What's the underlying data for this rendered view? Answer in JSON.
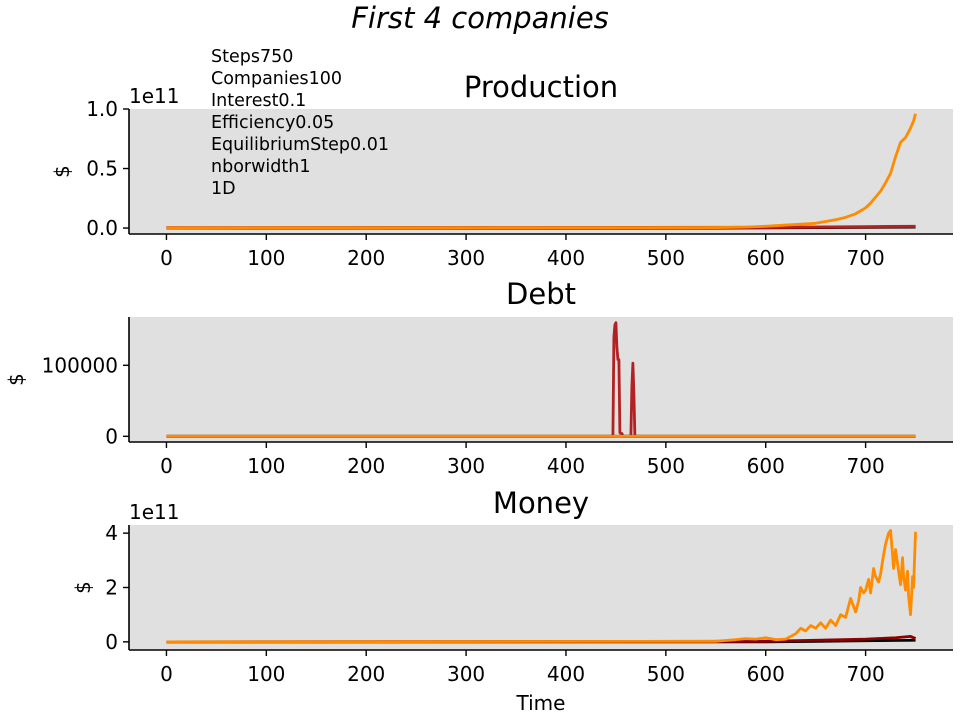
{
  "figure": {
    "suptitle": "First 4 companies",
    "params": [
      "Steps750",
      "Companies100",
      "Interest0.1",
      "Efficiency0.05",
      "EquilibriumStep0.01",
      "nborwidth1",
      "1D"
    ],
    "colors": {
      "plot_bg": "#e0e0e0",
      "series": [
        "#000000",
        "#8b0000",
        "#b22222",
        "#ff8c00"
      ]
    }
  },
  "chart_data": [
    {
      "type": "line",
      "title": "Production",
      "xlabel": "",
      "ylabel": "$",
      "y_offset_label": "1e11",
      "xlim": [
        -37.5,
        787.5
      ],
      "ylim": [
        -0.05,
        1.0
      ],
      "xticks": [
        0,
        100,
        200,
        300,
        400,
        500,
        600,
        700
      ],
      "xtick_labels": [
        "0",
        "100",
        "200",
        "300",
        "400",
        "500",
        "600",
        "700"
      ],
      "yticks": [
        0.0,
        0.5,
        1.0
      ],
      "ytick_labels": [
        "0.0",
        "0.5",
        "1.0"
      ],
      "grid": false,
      "series": [
        {
          "color": "#000000",
          "x": [
            0,
            550,
            600,
            650,
            700,
            750
          ],
          "y": [
            0,
            0,
            0.002,
            0.004,
            0.006,
            0.008
          ]
        },
        {
          "color": "#8b0000",
          "x": [
            0,
            600,
            650,
            700,
            750
          ],
          "y": [
            0.002,
            0.004,
            0.006,
            0.009,
            0.012
          ]
        },
        {
          "color": "#b22222",
          "x": [
            0,
            600,
            650,
            700,
            750
          ],
          "y": [
            0.003,
            0.006,
            0.009,
            0.012,
            0.015
          ]
        },
        {
          "color": "#ff8c00",
          "x": [
            0,
            550,
            580,
            600,
            620,
            640,
            650,
            660,
            670,
            680,
            690,
            700,
            705,
            710,
            715,
            720,
            725,
            730,
            735,
            740,
            745,
            748,
            750
          ],
          "y": [
            0.002,
            0.004,
            0.008,
            0.015,
            0.025,
            0.035,
            0.04,
            0.055,
            0.07,
            0.09,
            0.12,
            0.17,
            0.21,
            0.26,
            0.31,
            0.38,
            0.46,
            0.6,
            0.72,
            0.76,
            0.84,
            0.9,
            0.96
          ]
        }
      ]
    },
    {
      "type": "line",
      "title": "Debt",
      "xlabel": "",
      "ylabel": "$",
      "xlim": [
        -37.5,
        787.5
      ],
      "ylim": [
        -8000,
        168000
      ],
      "xticks": [
        0,
        100,
        200,
        300,
        400,
        500,
        600,
        700
      ],
      "xtick_labels": [
        "0",
        "100",
        "200",
        "300",
        "400",
        "500",
        "600",
        "700"
      ],
      "yticks": [
        0,
        100000
      ],
      "ytick_labels": [
        "0",
        "100000"
      ],
      "grid": false,
      "series": [
        {
          "color": "#b22222",
          "x": [
            0,
            447,
            448,
            449,
            450,
            451,
            452,
            453,
            454,
            455,
            456,
            457,
            458,
            465,
            466,
            467,
            468,
            469,
            470,
            750
          ],
          "y": [
            0,
            0,
            140000,
            157000,
            160000,
            125000,
            108000,
            108000,
            5000,
            4000,
            4000,
            0,
            0,
            0,
            70000,
            103000,
            60000,
            0,
            0,
            0
          ]
        },
        {
          "color": "#000000",
          "x": [
            0,
            750
          ],
          "y": [
            0,
            0
          ]
        },
        {
          "color": "#ff8c00",
          "x": [
            0,
            750
          ],
          "y": [
            0,
            0
          ]
        }
      ]
    },
    {
      "type": "line",
      "title": "Money",
      "xlabel": "Time",
      "ylabel": "$",
      "y_offset_label": "1e11",
      "xlim": [
        -37.5,
        787.5
      ],
      "ylim": [
        -0.3,
        4.3
      ],
      "xticks": [
        0,
        100,
        200,
        300,
        400,
        500,
        600,
        700
      ],
      "xtick_labels": [
        "0",
        "100",
        "200",
        "300",
        "400",
        "500",
        "600",
        "700"
      ],
      "yticks": [
        0,
        2,
        4
      ],
      "ytick_labels": [
        "0",
        "2",
        "4"
      ],
      "grid": false,
      "series": [
        {
          "color": "#000000",
          "x": [
            0,
            600,
            650,
            700,
            750
          ],
          "y": [
            0,
            0,
            0.02,
            0.04,
            0.06
          ]
        },
        {
          "color": "#8b0000",
          "x": [
            0,
            600,
            650,
            700,
            730,
            745,
            750
          ],
          "y": [
            0,
            0.02,
            0.06,
            0.1,
            0.15,
            0.2,
            0.12
          ]
        },
        {
          "color": "#ff8c00",
          "x": [
            0,
            550,
            560,
            570,
            580,
            590,
            600,
            610,
            620,
            630,
            635,
            640,
            645,
            650,
            655,
            660,
            665,
            670,
            675,
            680,
            685,
            690,
            693,
            695,
            698,
            700,
            703,
            705,
            708,
            710,
            713,
            715,
            718,
            720,
            723,
            725,
            727,
            728,
            730,
            733,
            735,
            737,
            738,
            740,
            742,
            743,
            745,
            747,
            748,
            750
          ],
          "y": [
            0,
            0.02,
            0.05,
            0.08,
            0.12,
            0.1,
            0.15,
            0.08,
            0.1,
            0.3,
            0.5,
            0.4,
            0.6,
            0.5,
            0.7,
            0.5,
            0.8,
            0.6,
            1.0,
            0.9,
            1.6,
            1.1,
            1.5,
            2.0,
            1.8,
            1.9,
            2.3,
            1.8,
            2.7,
            2.4,
            2.2,
            2.5,
            3.2,
            3.6,
            4.0,
            4.1,
            3.2,
            2.7,
            3.4,
            2.6,
            2.1,
            3.1,
            2.4,
            1.9,
            2.6,
            1.7,
            1.0,
            2.4,
            2.0,
            4.05
          ]
        }
      ]
    }
  ]
}
